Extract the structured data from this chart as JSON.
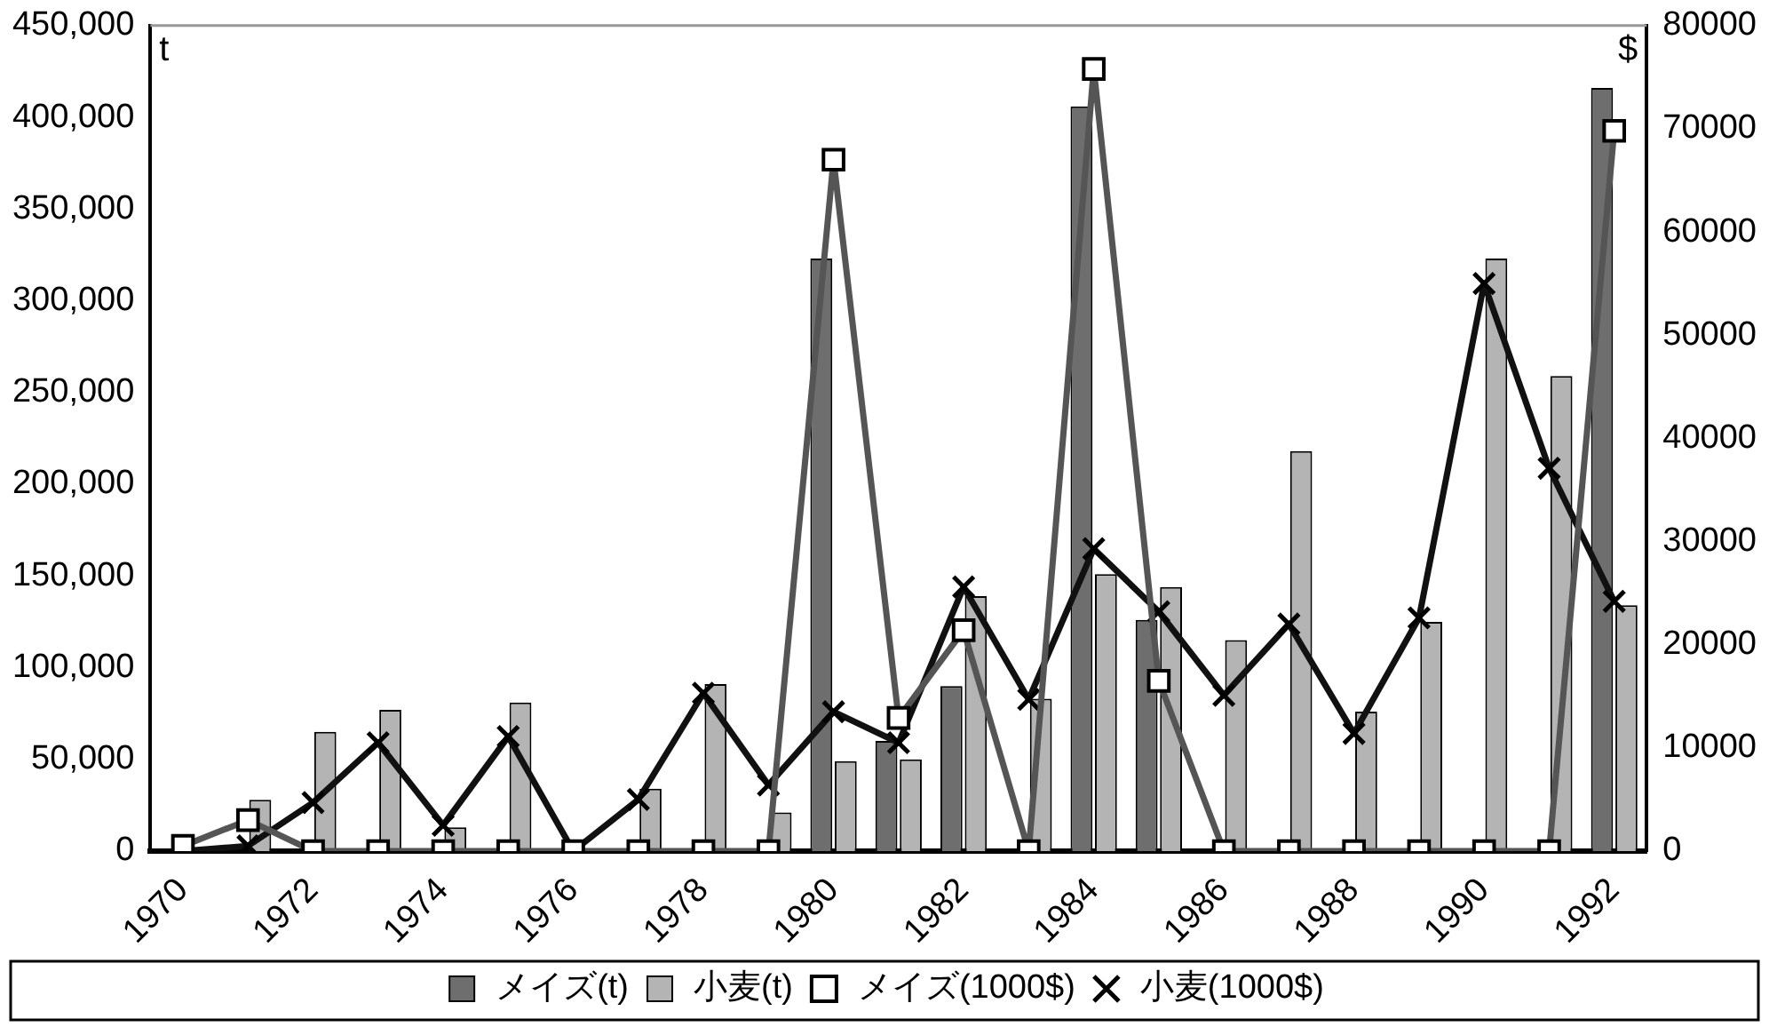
{
  "chart_data": {
    "type": "bar",
    "categories": [
      "1970",
      null,
      "1972",
      null,
      "1974",
      null,
      "1976",
      null,
      "1978",
      null,
      "1980",
      null,
      "1982",
      null,
      "1984",
      null,
      "1986",
      null,
      "1988",
      null,
      "1990",
      null,
      "1992"
    ],
    "ylabel": "t",
    "y2label": "$",
    "ylim": [
      0,
      450000
    ],
    "yticks": [
      {
        "value": 0,
        "label": "0"
      },
      {
        "value": 50000,
        "label": "50,000"
      },
      {
        "value": 100000,
        "label": "100,000"
      },
      {
        "value": 150000,
        "label": "150,000"
      },
      {
        "value": 200000,
        "label": "200,000"
      },
      {
        "value": 250000,
        "label": "250,000"
      },
      {
        "value": 300000,
        "label": "300,000"
      },
      {
        "value": 350000,
        "label": "350,000"
      },
      {
        "value": 400000,
        "label": "400,000"
      },
      {
        "value": 450000,
        "label": "450,000"
      }
    ],
    "y2lim": [
      0,
      80000
    ],
    "y2ticks": [
      0,
      10000,
      20000,
      30000,
      40000,
      50000,
      60000,
      70000,
      80000
    ],
    "grid": false,
    "legend": "bottom",
    "series": [
      {
        "name": "メイズ(t)",
        "color": "#6e6e6e",
        "values": [
          0,
          0,
          0,
          0,
          0,
          0,
          0,
          0,
          0,
          0,
          323000,
          60000,
          90000,
          0,
          406000,
          126000,
          0,
          0,
          0,
          0,
          0,
          0,
          416000
        ]
      },
      {
        "name": "小麦(t)",
        "color": "#b4b4b4",
        "values": [
          0,
          28000,
          65000,
          77000,
          13000,
          81000,
          0,
          34000,
          91000,
          21000,
          49000,
          50000,
          139000,
          83000,
          151000,
          144000,
          115000,
          218000,
          76000,
          125000,
          323000,
          259000,
          134000
        ]
      },
      {
        "name": "メイズ(1000$)",
        "type": "line",
        "axis": "y2",
        "marker": "square",
        "color": "#555555",
        "values": [
          500,
          3000,
          0,
          0,
          0,
          0,
          0,
          0,
          0,
          0,
          67000,
          12900,
          21400,
          0,
          75800,
          16500,
          0,
          0,
          0,
          0,
          0,
          0,
          69800
        ]
      },
      {
        "name": "小麦(1000$)",
        "type": "line",
        "axis": "y2",
        "marker": "cross",
        "color": "#111111",
        "values": [
          0,
          500,
          4700,
          10500,
          2500,
          11100,
          0,
          5000,
          15300,
          6400,
          13500,
          10500,
          25600,
          14700,
          29300,
          23200,
          15100,
          22000,
          11400,
          22600,
          55000,
          37100,
          24200
        ]
      }
    ]
  }
}
